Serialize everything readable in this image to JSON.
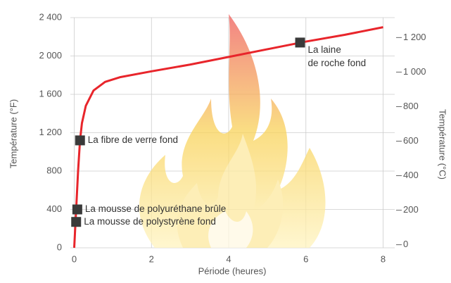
{
  "chart_data": {
    "type": "line",
    "x_label": "Période (heures)",
    "y_label": "Température (°F)",
    "y2_label": "Température (°C)",
    "x": [
      0,
      0.05,
      0.1,
      0.15,
      0.2,
      0.3,
      0.5,
      0.8,
      1.2,
      2,
      3,
      4,
      5,
      6,
      7,
      8
    ],
    "series": [
      {
        "color": "#e8252b",
        "values": [
          0,
          400,
          800,
          1120,
          1300,
          1480,
          1640,
          1730,
          1780,
          1840,
          1910,
          1990,
          2070,
          2150,
          2220,
          2300
        ]
      }
    ],
    "xlim": [
      -0.1,
      8.3
    ],
    "xticks": [
      0,
      2,
      4,
      6,
      8
    ],
    "ylim": [
      0,
      2400
    ],
    "yticks": [
      0,
      400,
      800,
      {
        "value": 1200,
        "label": "1 200"
      },
      {
        "value": 1600,
        "label": "1 600"
      },
      {
        "value": 2000,
        "label": "2 000"
      },
      {
        "value": 2400,
        "label": "2 400"
      }
    ],
    "y2lim": [
      -17.8,
      1315.6
    ],
    "y2ticks": [
      0,
      200,
      400,
      600,
      800,
      {
        "value": 1000,
        "label": "1 000"
      },
      {
        "value": 1200,
        "label": "1 200"
      }
    ],
    "grid": true,
    "annotations": [
      {
        "x": 0.15,
        "y": 1120,
        "text": [
          "La fibre de verre fond"
        ]
      },
      {
        "x": 0.08,
        "y": 400,
        "text": [
          "La mousse de polyuréthane brûle"
        ]
      },
      {
        "x": 0.05,
        "y": 270,
        "text": [
          "La mousse de polystyrène fond"
        ]
      },
      {
        "x": 5.85,
        "y": 2140,
        "text": [
          "La laine",
          "de roche fond"
        ]
      }
    ]
  }
}
